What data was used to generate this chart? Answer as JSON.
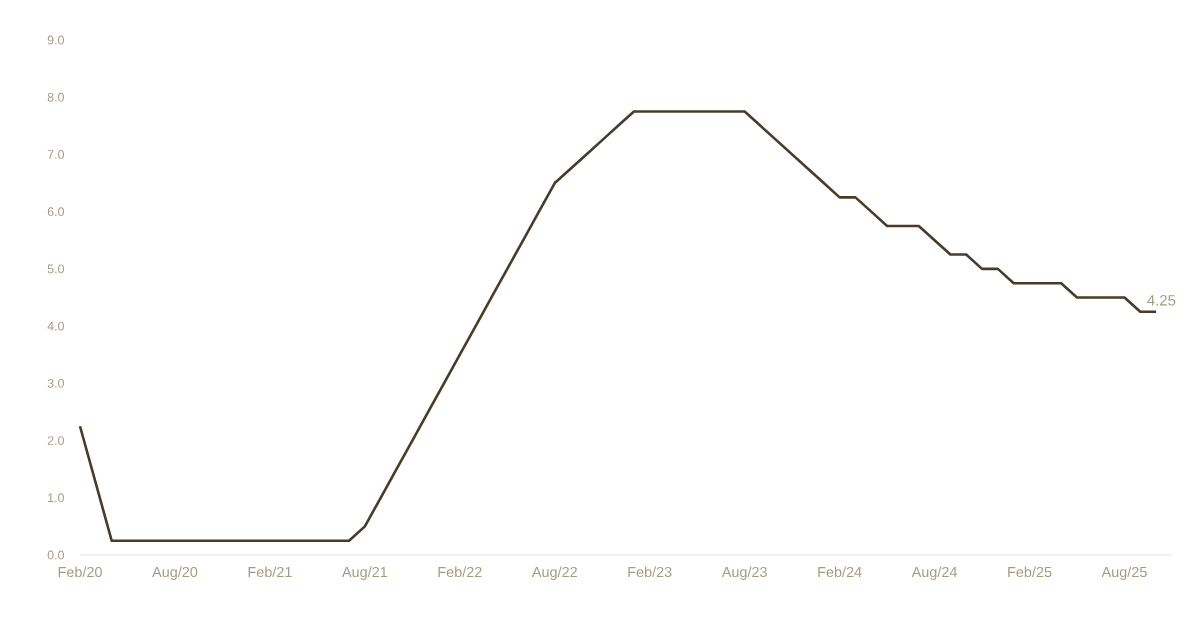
{
  "chart_data": {
    "type": "line",
    "x": [
      "2020-02",
      "2020-03",
      "2020-04",
      "2020-05",
      "2020-06",
      "2020-07",
      "2020-08",
      "2020-09",
      "2020-10",
      "2020-11",
      "2020-12",
      "2021-01",
      "2021-02",
      "2021-03",
      "2021-04",
      "2021-05",
      "2021-06",
      "2021-07",
      "2021-08",
      "2021-09",
      "2021-10",
      "2021-11",
      "2021-12",
      "2022-01",
      "2022-02",
      "2022-03",
      "2022-04",
      "2022-05",
      "2022-06",
      "2022-07",
      "2022-08",
      "2022-09",
      "2022-10",
      "2022-11",
      "2022-12",
      "2023-01",
      "2023-02",
      "2023-03",
      "2023-04",
      "2023-05",
      "2023-06",
      "2023-07",
      "2023-08",
      "2023-09",
      "2023-10",
      "2023-11",
      "2023-12",
      "2024-01",
      "2024-02",
      "2024-03",
      "2024-04",
      "2024-05",
      "2024-06",
      "2024-07",
      "2024-08",
      "2024-09",
      "2024-10",
      "2024-11",
      "2024-12",
      "2025-01",
      "2025-02",
      "2025-03",
      "2025-04",
      "2025-05",
      "2025-06",
      "2025-07",
      "2025-08",
      "2025-09",
      "2025-10"
    ],
    "series": [
      {
        "color": "#4a3b28",
        "values": [
          2.25,
          1.25,
          0.25,
          0.25,
          0.25,
          0.25,
          0.25,
          0.25,
          0.25,
          0.25,
          0.25,
          0.25,
          0.25,
          0.25,
          0.25,
          0.25,
          0.25,
          0.25,
          0.5,
          1.0,
          1.5,
          2.0,
          2.5,
          3.0,
          3.5,
          4.0,
          4.5,
          5.0,
          5.5,
          6.0,
          6.5,
          6.75,
          7.0,
          7.25,
          7.5,
          7.75,
          7.75,
          7.75,
          7.75,
          7.75,
          7.75,
          7.75,
          7.75,
          7.5,
          7.25,
          7.0,
          6.75,
          6.5,
          6.25,
          6.25,
          6.0,
          5.75,
          5.75,
          5.75,
          5.5,
          5.25,
          5.25,
          5.0,
          5.0,
          4.75,
          4.75,
          4.75,
          4.75,
          4.5,
          4.5,
          4.5,
          4.5,
          4.25,
          4.25
        ]
      }
    ],
    "xlim": [
      "2020-02",
      "2025-11"
    ],
    "xticks": [
      {
        "value": "2020-02",
        "label": "Feb/20"
      },
      {
        "value": "2020-08",
        "label": "Aug/20"
      },
      {
        "value": "2021-02",
        "label": "Feb/21"
      },
      {
        "value": "2021-08",
        "label": "Aug/21"
      },
      {
        "value": "2022-02",
        "label": "Feb/22"
      },
      {
        "value": "2022-08",
        "label": "Aug/22"
      },
      {
        "value": "2023-02",
        "label": "Feb/23"
      },
      {
        "value": "2023-08",
        "label": "Aug/23"
      },
      {
        "value": "2024-02",
        "label": "Feb/24"
      },
      {
        "value": "2024-08",
        "label": "Aug/24"
      },
      {
        "value": "2025-02",
        "label": "Feb/25"
      },
      {
        "value": "2025-08",
        "label": "Aug/25"
      }
    ],
    "ylim": [
      0,
      9
    ],
    "yticks": [
      {
        "value": 0,
        "label": "0.0"
      },
      {
        "value": 1,
        "label": "1.0"
      },
      {
        "value": 2,
        "label": "2.0"
      },
      {
        "value": 3,
        "label": "3.0"
      },
      {
        "value": 4,
        "label": "4.0"
      },
      {
        "value": 5,
        "label": "5.0"
      },
      {
        "value": 6,
        "label": "6.0"
      },
      {
        "value": 7,
        "label": "7.0"
      },
      {
        "value": 8,
        "label": "8.0"
      },
      {
        "value": 9,
        "label": "9.0"
      }
    ],
    "annotations": [
      {
        "text": "4.25",
        "x": "2025-10",
        "y": 4.25
      }
    ],
    "grid": false,
    "legend": false,
    "marker": "none",
    "line_style": "solid"
  }
}
